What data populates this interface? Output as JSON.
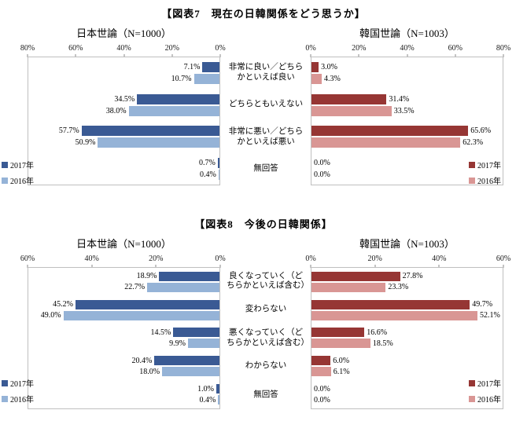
{
  "chart_data": [
    {
      "type": "bar",
      "orientation": "horizontal",
      "title": "【図表7　現在の日韓関係をどう思うか】",
      "categories": [
        "非常に良い／どちらかといえば良い",
        "どちらともいえない",
        "非常に悪い／どちらかといえば悪い",
        "無回答"
      ],
      "panels": [
        {
          "side": "left",
          "title": "日本世論（N=1000）",
          "direction": "rtl",
          "axis_max": 80,
          "axis_ticks": [
            80,
            60,
            40,
            20,
            0
          ],
          "series": [
            {
              "name": "2017年",
              "color": "#3A5A94",
              "values": [
                7.1,
                34.5,
                57.7,
                0.7
              ]
            },
            {
              "name": "2016年",
              "color": "#95B3D7",
              "values": [
                10.7,
                38.0,
                50.9,
                0.4
              ]
            }
          ]
        },
        {
          "side": "right",
          "title": "韓国世論（N=1003）",
          "direction": "ltr",
          "axis_max": 80,
          "axis_ticks": [
            0,
            20,
            40,
            60,
            80
          ],
          "series": [
            {
              "name": "2017年",
              "color": "#963634",
              "values": [
                3.0,
                31.4,
                65.6,
                0.0
              ]
            },
            {
              "name": "2016年",
              "color": "#D99694",
              "values": [
                4.3,
                33.5,
                62.3,
                0.0
              ]
            }
          ]
        }
      ]
    },
    {
      "type": "bar",
      "orientation": "horizontal",
      "title": "【図表8　今後の日韓関係】",
      "categories": [
        "良くなっていく（どちらかといえば含む）",
        "変わらない",
        "悪くなっていく（どちらかといえば含む）",
        "わからない",
        "無回答"
      ],
      "panels": [
        {
          "side": "left",
          "title": "日本世論（N=1000）",
          "direction": "rtl",
          "axis_max": 60,
          "axis_ticks": [
            60,
            40,
            20,
            0
          ],
          "series": [
            {
              "name": "2017年",
              "color": "#3A5A94",
              "values": [
                18.9,
                45.2,
                14.5,
                20.4,
                1.0
              ]
            },
            {
              "name": "2016年",
              "color": "#95B3D7",
              "values": [
                22.7,
                49.0,
                9.9,
                18.0,
                0.4
              ]
            }
          ]
        },
        {
          "side": "right",
          "title": "韓国世論（N=1003）",
          "direction": "ltr",
          "axis_max": 60,
          "axis_ticks": [
            0,
            20,
            40,
            60
          ],
          "series": [
            {
              "name": "2017年",
              "color": "#963634",
              "values": [
                27.8,
                49.7,
                16.6,
                6.0,
                0.0
              ]
            },
            {
              "name": "2016年",
              "color": "#D99694",
              "values": [
                23.3,
                52.1,
                18.5,
                6.1,
                0.0
              ]
            }
          ]
        }
      ]
    }
  ]
}
